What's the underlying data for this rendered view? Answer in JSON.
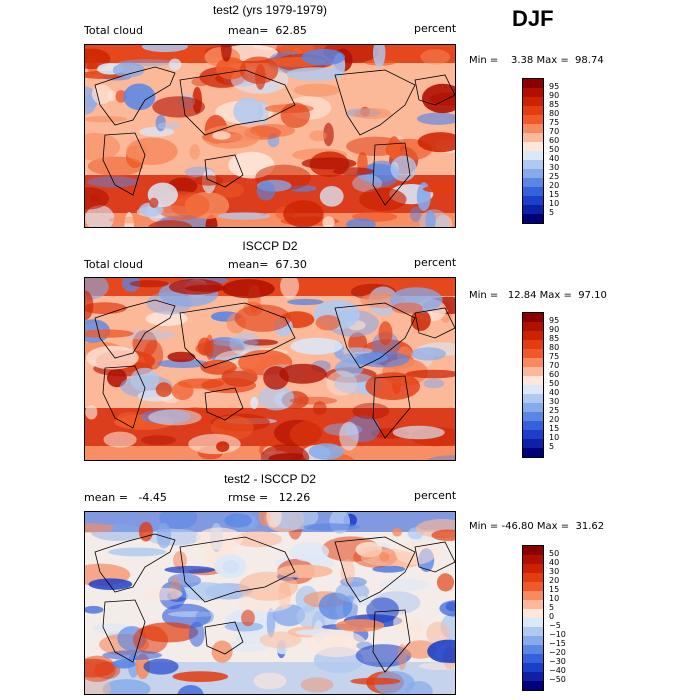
{
  "season": "DJF",
  "panels": [
    {
      "title": "test2 (yrs 1979-1979)",
      "left_text": "Total cloud",
      "center_text": "mean=  62.85",
      "right_text": "percent",
      "minmax": "Min =    3.38 Max =  98.74",
      "colorbar": {
        "labels": [
          "95",
          "90",
          "85",
          "80",
          "75",
          "70",
          "60",
          "50",
          "40",
          "30",
          "25",
          "20",
          "15",
          "10",
          "5"
        ],
        "colors": [
          "#8b0000",
          "#b01000",
          "#cc2200",
          "#e23c10",
          "#f05a28",
          "#f78a5e",
          "#fbb99a",
          "#fde7da",
          "#dbe8f8",
          "#b0c9f0",
          "#86aaea",
          "#5a86e4",
          "#3462dc",
          "#1b3fc8",
          "#0c21a6",
          "#00007a"
        ]
      },
      "map_style": "cloud_a"
    },
    {
      "title": "ISCCP D2",
      "left_text": "Total cloud",
      "center_text": "mean=  67.30",
      "right_text": "percent",
      "minmax": "Min =   12.84 Max =  97.10",
      "colorbar": {
        "labels": [
          "95",
          "90",
          "85",
          "80",
          "75",
          "70",
          "60",
          "50",
          "40",
          "30",
          "25",
          "20",
          "15",
          "10",
          "5"
        ],
        "colors": [
          "#8b0000",
          "#b01000",
          "#cc2200",
          "#e23c10",
          "#f05a28",
          "#f78a5e",
          "#fbb99a",
          "#fde7da",
          "#dbe8f8",
          "#b0c9f0",
          "#86aaea",
          "#5a86e4",
          "#3462dc",
          "#1b3fc8",
          "#0c21a6",
          "#00007a"
        ]
      },
      "map_style": "cloud_b"
    },
    {
      "title": "test2 - ISCCP D2",
      "left_text": "mean =   -4.45",
      "center_text": "rmse =   12.26",
      "right_text": "percent",
      "minmax": "Min = -46.80 Max =  31.62",
      "colorbar": {
        "labels": [
          "50",
          "40",
          "30",
          "20",
          "15",
          "10",
          "5",
          "0",
          "−5",
          "−10",
          "−15",
          "−20",
          "−30",
          "−40",
          "−50"
        ],
        "colors": [
          "#8b0000",
          "#b01000",
          "#cc2200",
          "#e23c10",
          "#f05a28",
          "#f78a5e",
          "#fbb99a",
          "#fde7da",
          "#dbe8f8",
          "#b0c9f0",
          "#86aaea",
          "#5a86e4",
          "#3462dc",
          "#1b3fc8",
          "#0c21a6",
          "#00007a"
        ]
      },
      "map_style": "diff"
    }
  ]
}
